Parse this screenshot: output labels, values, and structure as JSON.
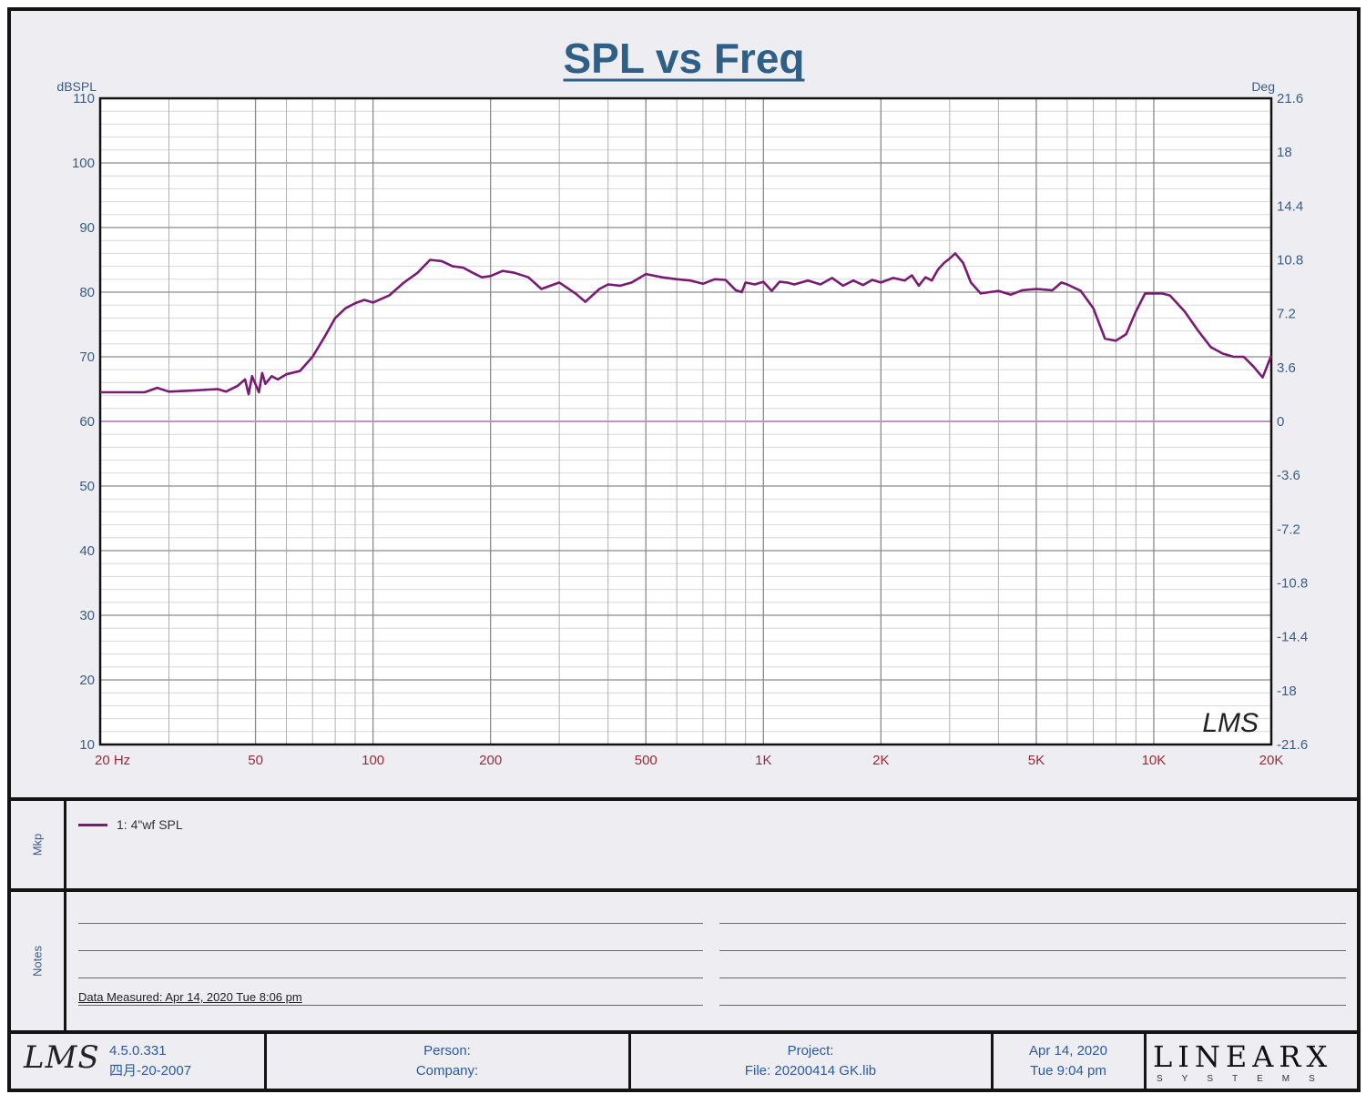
{
  "chart_data": {
    "type": "line",
    "title": "SPL vs Freq",
    "ylabel": "dBSPL",
    "y2label": "Deg",
    "xscale": "log",
    "xlim": [
      20,
      20000
    ],
    "ylim": [
      10,
      110
    ],
    "y2lim": [
      -21.6,
      21.6
    ],
    "grid": true,
    "x_tick_labels": [
      "20  Hz",
      "50",
      "100",
      "200",
      "500",
      "1K",
      "2K",
      "5K",
      "10K",
      "20K"
    ],
    "x_tick_values": [
      20,
      50,
      100,
      200,
      500,
      1000,
      2000,
      5000,
      10000,
      20000
    ],
    "y_ticks": [
      10,
      20,
      30,
      40,
      50,
      60,
      70,
      80,
      90,
      100,
      110
    ],
    "y2_ticks": [
      "21.6",
      "18",
      "14.4",
      "10.8",
      "7.2",
      "3.6",
      "0",
      "-3.6",
      "-7.2",
      "-10.8",
      "-14.4",
      "-18",
      "-21.6"
    ],
    "reference_line": {
      "y": 60,
      "color": "#c98ccf"
    },
    "series": [
      {
        "name": "1: 4\"wf SPL",
        "color": "#7a1a74",
        "x": [
          20,
          26,
          28,
          30,
          35,
          40,
          42,
          45,
          47,
          48,
          49,
          51,
          52,
          53,
          55,
          57,
          60,
          65,
          70,
          75,
          80,
          85,
          90,
          95,
          100,
          110,
          120,
          130,
          140,
          150,
          160,
          170,
          180,
          190,
          200,
          215,
          230,
          250,
          270,
          300,
          330,
          350,
          380,
          400,
          430,
          460,
          500,
          550,
          600,
          650,
          700,
          750,
          800,
          850,
          880,
          900,
          950,
          1000,
          1050,
          1100,
          1150,
          1200,
          1300,
          1400,
          1500,
          1600,
          1700,
          1800,
          1900,
          2000,
          2150,
          2300,
          2400,
          2500,
          2600,
          2700,
          2800,
          2900,
          3000,
          3100,
          3250,
          3400,
          3600,
          4000,
          4300,
          4600,
          5000,
          5500,
          5800,
          6000,
          6500,
          7000,
          7500,
          8000,
          8500,
          9000,
          9500,
          10000,
          10500,
          11000,
          12000,
          13000,
          14000,
          15000,
          16000,
          17000,
          18000,
          19000,
          20000
        ],
        "y": [
          64.5,
          64.5,
          65.2,
          64.6,
          64.8,
          65,
          64.6,
          65.5,
          66.5,
          64.2,
          67,
          64.5,
          67.5,
          65.8,
          67,
          66.5,
          67.3,
          67.8,
          70,
          73,
          76,
          77.5,
          78.3,
          78.8,
          78.4,
          79.5,
          81.5,
          83,
          85,
          84.8,
          84,
          83.8,
          83,
          82.3,
          82.5,
          83.3,
          83,
          82.3,
          80.5,
          81.5,
          79.8,
          78.5,
          80.5,
          81.2,
          81,
          81.5,
          82.8,
          82.3,
          82,
          81.8,
          81.3,
          82,
          81.9,
          80.3,
          80,
          81.5,
          81.2,
          81.6,
          80.2,
          81.6,
          81.5,
          81.2,
          81.8,
          81.2,
          82.2,
          81,
          81.8,
          81.1,
          81.9,
          81.5,
          82.2,
          81.8,
          82.6,
          81,
          82.3,
          81.8,
          83.5,
          84.5,
          85.2,
          86,
          84.5,
          81.5,
          79.8,
          80.2,
          79.6,
          80.3,
          80.5,
          80.3,
          81.5,
          81.2,
          80.2,
          77.5,
          72.8,
          72.5,
          73.5,
          77,
          79.8,
          79.8,
          79.8,
          79.5,
          77,
          74,
          71.5,
          70.5,
          70,
          70,
          68.5,
          66.8,
          70.2
        ]
      }
    ]
  },
  "legend": {
    "side_label": "Mkp",
    "entry": "1: 4\"wf SPL"
  },
  "notes": {
    "side_label": "Notes",
    "measured": "Data Measured: Apr 14, 2020  Tue  8:06 pm"
  },
  "footer": {
    "logo": "LMS",
    "version": "4.5.0.331",
    "build": "四月-20-2007",
    "person_label": "Person:",
    "company_label": "Company:",
    "project_label": "Project:",
    "file_label": "File: 20200414 GK.lib",
    "date": "Apr 14, 2020",
    "time": "Tue  9:04 pm",
    "brand": "LINEARX",
    "brand_sub": "SYSTEMS"
  },
  "watermark": "LMS"
}
